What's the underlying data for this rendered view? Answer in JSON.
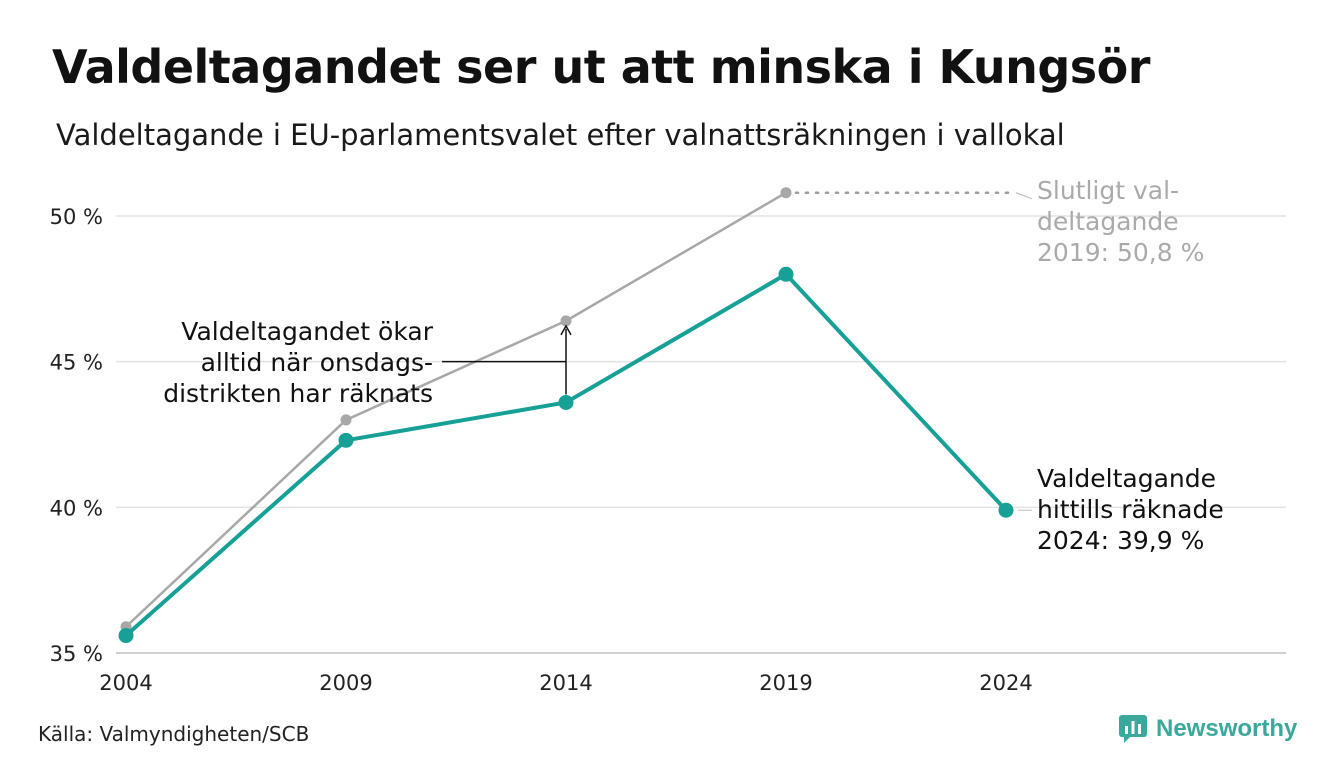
{
  "title": "Valdeltagandet ser ut att minska i Kungsör",
  "subtitle": "Valdeltagande i EU-parlamentsvalet efter valnattsräkningen i vallokal",
  "source": "Källa: Valmyndigheten/SCB",
  "brand": "Newsworthy",
  "colors": {
    "final": "#a8a8a8",
    "counted": "#16a096",
    "grid": "#e3e3e3",
    "brand": "#3aa89a"
  },
  "chart_data": {
    "type": "line",
    "x": [
      2004,
      2009,
      2014,
      2019,
      2024
    ],
    "xticks": [
      "2004",
      "2009",
      "2014",
      "2019",
      "2024"
    ],
    "ylim": [
      35,
      51
    ],
    "yticks": [
      35,
      40,
      45,
      50
    ],
    "ytick_labels": [
      "35 %",
      "40 %",
      "45 %",
      "50 %"
    ],
    "grid": true,
    "series": [
      {
        "key": "final",
        "x": [
          2004,
          2009,
          2014,
          2019
        ],
        "values": [
          35.9,
          43.0,
          46.4,
          50.8
        ]
      },
      {
        "key": "counted",
        "x": [
          2004,
          2009,
          2014,
          2019,
          2024
        ],
        "values": [
          35.6,
          42.3,
          43.6,
          48.0,
          39.9
        ]
      }
    ],
    "annotations": {
      "final_2019": [
        "Slutligt val-",
        "deltagande",
        "2019: 50,8 %"
      ],
      "counted_2024": [
        "Valdeltagande",
        "hittills räknade",
        "2024: 39,9 %"
      ],
      "gap_2014": [
        "Valdeltagandet ökar",
        "alltid när onsdags-",
        "distrikten har räknats"
      ]
    }
  }
}
